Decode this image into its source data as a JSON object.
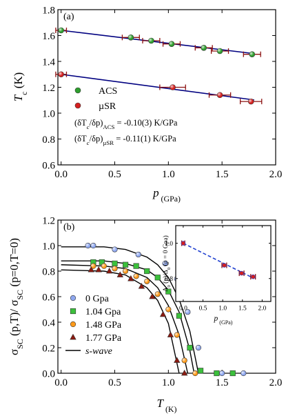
{
  "chart_data": [
    {
      "type": "scatter",
      "panel_label": "(a)",
      "xlabel": [
        "p",
        " (GPa)"
      ],
      "ylabel": [
        "T",
        "c",
        " (K)"
      ],
      "xlim": [
        -0.03,
        2.0
      ],
      "ylim": [
        0.6,
        1.8
      ],
      "xticks": [
        {
          "value": 0,
          "label": "0.0"
        },
        0.5,
        {
          "value": 1,
          "label": "1.0"
        },
        1.5,
        {
          "value": 2,
          "label": "2.0"
        }
      ],
      "yticks": [
        0.6,
        0.8,
        {
          "value": 1,
          "label": "1.0"
        },
        1.2,
        1.4,
        1.6,
        1.8
      ],
      "series": [
        {
          "name": "ACS",
          "color": "#2e9e2e",
          "marker": "circle",
          "x": [
            0,
            0.65,
            0.84,
            1.03,
            1.33,
            1.48,
            1.78
          ],
          "values": [
            1.64,
            1.585,
            1.56,
            1.535,
            1.505,
            1.48,
            1.455
          ],
          "xerr": [
            0.05,
            0.08,
            0.08,
            0.08,
            0.08,
            0.08,
            0.08
          ]
        },
        {
          "name": "µSR",
          "color": "#d42020",
          "marker": "circle",
          "x": [
            0,
            1.04,
            1.48,
            1.77
          ],
          "values": [
            1.3,
            1.2,
            1.14,
            1.09
          ],
          "xerr": [
            0.05,
            0.12,
            0.1,
            0.1
          ]
        }
      ],
      "lines": [
        {
          "color": "#000080",
          "x": [
            0,
            1.8
          ],
          "values": [
            1.64,
            1.46
          ]
        },
        {
          "color": "#000080",
          "x": [
            0,
            1.8
          ],
          "values": [
            1.3,
            1.102
          ]
        }
      ],
      "annotations": [
        [
          "(δT",
          "c",
          "/δp)",
          "ACS",
          " = -0.10(3) K/GPa"
        ],
        [
          "(δT",
          "c",
          "/δp)",
          "µSR",
          " = -0.11(1) K/GPa"
        ]
      ]
    },
    {
      "type": "scatter",
      "panel_label": "(b)",
      "xlabel": [
        "T",
        " (K)"
      ],
      "ylabel": [
        "σ",
        "SC",
        " (p,T)/ σ",
        "SC",
        " (p=0,T=0)"
      ],
      "xlim": [
        -0.03,
        2.0
      ],
      "ylim": [
        0,
        1.2
      ],
      "xticks": [
        {
          "value": 0,
          "label": "0.0"
        },
        0.5,
        {
          "value": 1,
          "label": "1.0"
        },
        1.5,
        {
          "value": 2,
          "label": "2.0"
        }
      ],
      "yticks": [
        {
          "value": 0,
          "label": "0.0"
        },
        0.2,
        0.4,
        0.6,
        0.8,
        {
          "value": 1,
          "label": "1.0"
        },
        1.2
      ],
      "series": [
        {
          "name": "0 Gpa",
          "color": "#8fa8f0",
          "marker": "circle",
          "x": [
            0.25,
            0.3,
            0.5,
            0.72,
            0.97,
            1.08,
            1.18,
            1.28,
            1.5,
            1.7
          ],
          "values": [
            1.0,
            1.0,
            0.97,
            0.93,
            0.86,
            0.74,
            0.48,
            0.2,
            0.0,
            0.0
          ]
        },
        {
          "name": "1.04 Gpa",
          "color": "#3cc03c",
          "marker": "square",
          "x": [
            0.3,
            0.38,
            0.5,
            0.6,
            0.7,
            0.8,
            0.9,
            1.0,
            1.1,
            1.2,
            1.3,
            1.45,
            1.6
          ],
          "values": [
            0.87,
            0.87,
            0.86,
            0.85,
            0.84,
            0.8,
            0.75,
            0.64,
            0.45,
            0.2,
            0.02,
            0.0,
            0.0
          ]
        },
        {
          "name": "1.48 GPa",
          "color": "#ff9a1a",
          "marker": "circle",
          "x": [
            0.3,
            0.4,
            0.5,
            0.6,
            0.7,
            0.8,
            0.9,
            1.0,
            1.08,
            1.15,
            1.25
          ],
          "values": [
            0.84,
            0.84,
            0.82,
            0.8,
            0.76,
            0.72,
            0.62,
            0.5,
            0.3,
            0.1,
            0.0
          ]
        },
        {
          "name": "1.77 GPa",
          "color": "#8b1a10",
          "marker": "triangle",
          "x": [
            0.28,
            0.35,
            0.45,
            0.55,
            0.65,
            0.75,
            0.85,
            0.95,
            1.02,
            1.08,
            1.15
          ],
          "values": [
            0.81,
            0.81,
            0.8,
            0.77,
            0.74,
            0.68,
            0.6,
            0.46,
            0.3,
            0.1,
            0.0
          ]
        }
      ],
      "fits": {
        "name": "s-wave",
        "color": "#000000",
        "curves": [
          {
            "x": [
              0,
              0.4,
              0.6,
              0.8,
              0.9,
              1.0,
              1.1,
              1.2,
              1.28
            ],
            "values": [
              0.99,
              0.99,
              0.97,
              0.91,
              0.85,
              0.75,
              0.58,
              0.33,
              0
            ]
          },
          {
            "x": [
              0,
              0.4,
              0.6,
              0.8,
              0.9,
              1.0,
              1.1,
              1.2,
              1.24
            ],
            "values": [
              0.88,
              0.88,
              0.86,
              0.81,
              0.75,
              0.65,
              0.48,
              0.18,
              0
            ]
          },
          {
            "x": [
              0,
              0.4,
              0.6,
              0.8,
              0.9,
              1.0,
              1.1,
              1.18
            ],
            "values": [
              0.85,
              0.84,
              0.82,
              0.75,
              0.67,
              0.53,
              0.3,
              0
            ]
          },
          {
            "x": [
              0,
              0.4,
              0.6,
              0.8,
              0.9,
              1.0,
              1.1
            ],
            "values": [
              0.81,
              0.8,
              0.77,
              0.67,
              0.57,
              0.39,
              0
            ]
          }
        ]
      }
    },
    {
      "type": "scatter",
      "xlabel": [
        "p",
        " (GPa)"
      ],
      "ylabel": [
        "Δ",
        "0",
        " (p)/Δ",
        "0",
        " (p = 0 Gpa)"
      ],
      "xlim": [
        -0.19,
        2.22
      ],
      "ylim": [
        0.67,
        1.1
      ],
      "xticks": [
        {
          "value": 0,
          "label": "0.0"
        },
        0.5,
        {
          "value": 1,
          "label": "1.0"
        },
        1.5,
        {
          "value": 2,
          "label": "2.0"
        }
      ],
      "yticks": [
        0.8,
        {
          "value": 1,
          "label": "1.0"
        }
      ],
      "series": [
        {
          "color": "#d42020",
          "marker": "circle",
          "x": [
            0,
            1.04,
            1.48,
            1.77
          ],
          "values": [
            1.0,
            0.875,
            0.83,
            0.81
          ],
          "xerr": [
            0.04,
            0.06,
            0.06,
            0.06
          ]
        }
      ],
      "lines": [
        {
          "color": "#2040d0",
          "dashed": true,
          "x": [
            0,
            1.8
          ],
          "values": [
            1.0,
            0.8
          ]
        }
      ]
    }
  ]
}
